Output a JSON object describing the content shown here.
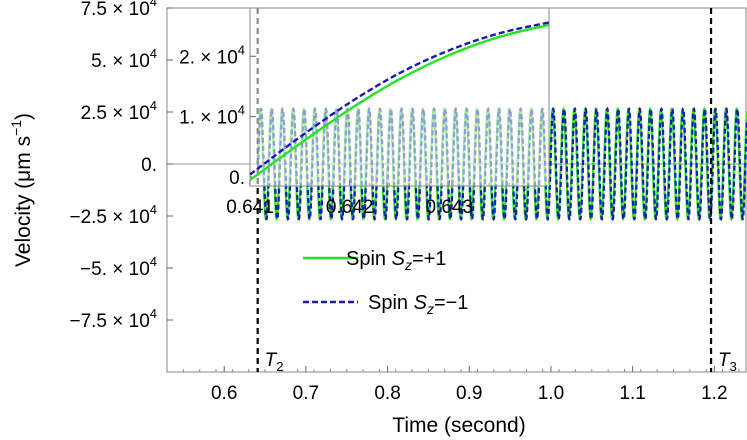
{
  "chart_data": [
    {
      "type": "line",
      "title": "",
      "xlabel": "Time (second)",
      "ylabel": "Velocity (μm s⁻¹)",
      "xlim": [
        0.53,
        1.24
      ],
      "ylim": [
        -100000,
        75000
      ],
      "x_ticks": [
        {
          "value": 0.6,
          "label": "0.6"
        },
        {
          "value": 0.7,
          "label": "0.7"
        },
        {
          "value": 0.8,
          "label": "0.8"
        },
        {
          "value": 0.9,
          "label": "0.9"
        },
        {
          "value": 1.0,
          "label": "1.0"
        },
        {
          "value": 1.1,
          "label": "1.1"
        },
        {
          "value": 1.2,
          "label": "1.2"
        }
      ],
      "y_ticks": [
        {
          "value": 75000,
          "mantissa": "7.5",
          "exp": "4"
        },
        {
          "value": 50000,
          "mantissa": "5.",
          "exp": "4"
        },
        {
          "value": 25000,
          "mantissa": "2.5",
          "exp": "4"
        },
        {
          "value": 0,
          "mantissa": "0.",
          "exp": ""
        },
        {
          "value": -25000,
          "mantissa": "−2.5",
          "exp": "4"
        },
        {
          "value": -50000,
          "mantissa": "−5.",
          "exp": "4"
        },
        {
          "value": -75000,
          "mantissa": "−7.5",
          "exp": "4"
        }
      ],
      "oscillation": {
        "amplitude": 26500,
        "start": 0.641,
        "period": 0.01325
      },
      "series": [
        {
          "name": "Spin Sz=+1",
          "name_prefix": "Spin ",
          "name_symbol": "S",
          "name_sub": "z",
          "name_suffix": "=+1",
          "color": "#22e622",
          "style": "solid",
          "phase": 0
        },
        {
          "name": "Spin Sz=−1",
          "name_prefix": "Spin ",
          "name_symbol": "S",
          "name_sub": "z",
          "name_suffix": "=−1",
          "color": "#1a1ab3",
          "style": "dashed",
          "phase": 0.05
        }
      ],
      "annotations": [
        {
          "x": 0.641,
          "label": "T",
          "sub": "2"
        },
        {
          "x": 1.196,
          "label": "T",
          "sub": "3"
        }
      ],
      "grid": false,
      "legend": "center-left"
    },
    {
      "type": "line",
      "role": "inset",
      "xlim": [
        0.641,
        0.644
      ],
      "ylim": [
        -1500,
        28000
      ],
      "x_ticks": [
        {
          "value": 0.641,
          "label": "0.641"
        },
        {
          "value": 0.642,
          "label": "0.642"
        },
        {
          "value": 0.643,
          "label": "0.643"
        }
      ],
      "y_ticks": [
        {
          "value": 20000,
          "mantissa": "2.",
          "exp": "4"
        },
        {
          "value": 10000,
          "mantissa": "1.",
          "exp": "4"
        },
        {
          "value": 0,
          "mantissa": "0.",
          "exp": ""
        }
      ],
      "series": [
        {
          "name": "Spin Sz=+1",
          "color": "#22e622",
          "style": "solid",
          "x": [
            0.641,
            0.6415,
            0.642,
            0.6425,
            0.643,
            0.6435,
            0.644
          ],
          "y": [
            -500,
            5500,
            11200,
            16200,
            20200,
            23200,
            25200
          ]
        },
        {
          "name": "Spin Sz=−1",
          "color": "#1a1ab3",
          "style": "dashed",
          "x": [
            0.641,
            0.6415,
            0.642,
            0.6425,
            0.643,
            0.6435,
            0.644
          ],
          "y": [
            400,
            6600,
            12300,
            17200,
            21000,
            23800,
            25600
          ]
        }
      ]
    }
  ]
}
